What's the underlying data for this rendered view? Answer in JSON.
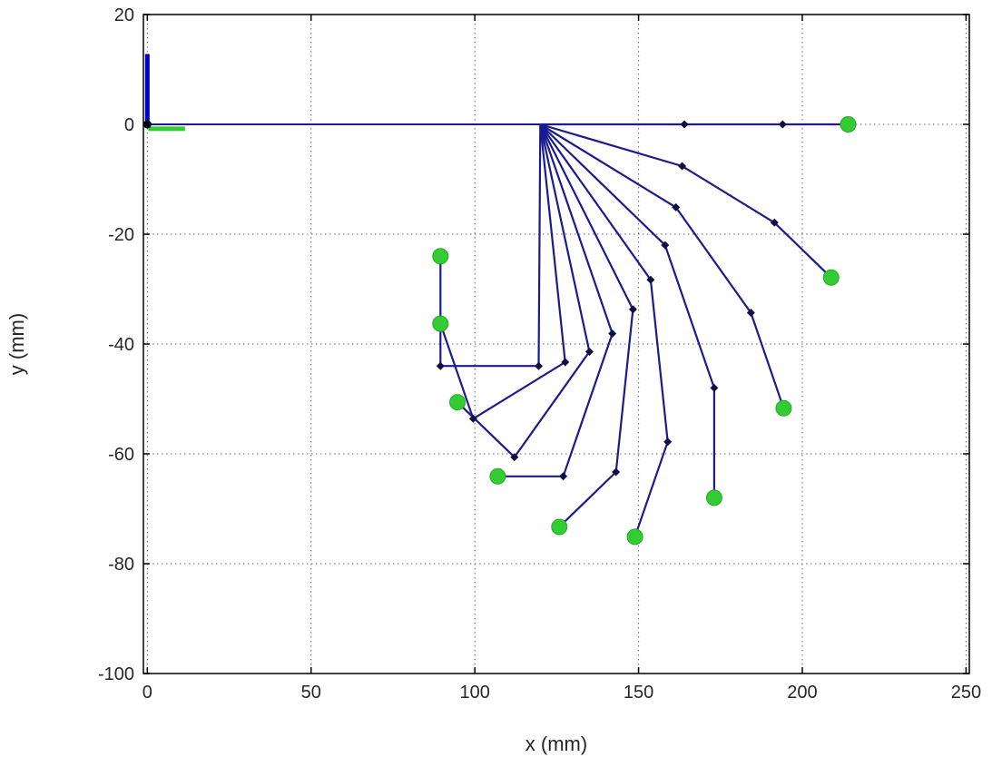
{
  "figure": {
    "background": "#ffffff"
  },
  "chart_data": {
    "type": "line",
    "title": "",
    "xlabel": "x (mm)",
    "ylabel": "y (mm)",
    "xlim": [
      -1.2,
      251
    ],
    "ylim": [
      -100,
      20
    ],
    "x_ticks": [
      0,
      50,
      100,
      150,
      200,
      250
    ],
    "y_ticks": [
      20,
      0,
      -20,
      -40,
      -60,
      -80,
      -100
    ],
    "grid": "dotted",
    "legend": "none",
    "colors": {
      "link": "#1b1b8f",
      "joint_marker": "#101040",
      "tip_marker": "#33cc33",
      "frame_x_axis": "#33cc33",
      "frame_y_axis": "#0000cc",
      "origin_marker": "#000000",
      "grid": "#666666",
      "axis_box": "#000000",
      "text": "#262626"
    },
    "description": "Planar 3-link finger kinematics: ten flexion poses fanning from a knuckle at (120,0); joints marked with dark diamonds, fingertips with green circles; base link from origin to knuckle; coordinate frame bars at origin.",
    "base_link": {
      "points": [
        [
          0,
          0
        ],
        [
          120,
          0
        ]
      ]
    },
    "origin_marker": [
      0,
      0
    ],
    "origin_frame": {
      "y_bar": [
        [
          0,
          -0.3
        ],
        [
          0,
          12.8
        ]
      ],
      "x_bar": [
        [
          0.3,
          -0.8
        ],
        [
          11.5,
          -0.8
        ]
      ]
    },
    "finger_poses": [
      {
        "joints": [
          [
            120,
            0
          ],
          [
            164.0,
            0.0
          ],
          [
            194.0,
            0.0
          ],
          [
            214.0,
            0.0
          ]
        ]
      },
      {
        "joints": [
          [
            120,
            0
          ],
          [
            163.3,
            -7.6
          ],
          [
            191.5,
            -17.9
          ],
          [
            208.8,
            -27.9
          ]
        ]
      },
      {
        "joints": [
          [
            120,
            0
          ],
          [
            161.4,
            -15.1
          ],
          [
            184.3,
            -34.3
          ],
          [
            194.3,
            -51.7
          ]
        ]
      },
      {
        "joints": [
          [
            120,
            0
          ],
          [
            158.1,
            -22.0
          ],
          [
            173.1,
            -48.0
          ],
          [
            173.1,
            -68.0
          ]
        ]
      },
      {
        "joints": [
          [
            120,
            0
          ],
          [
            153.7,
            -28.3
          ],
          [
            158.9,
            -57.8
          ],
          [
            148.9,
            -75.1
          ]
        ]
      },
      {
        "joints": [
          [
            120,
            0
          ],
          [
            148.3,
            -33.7
          ],
          [
            143.1,
            -63.3
          ],
          [
            125.8,
            -73.3
          ]
        ]
      },
      {
        "joints": [
          [
            120,
            0
          ],
          [
            142.0,
            -38.1
          ],
          [
            127.0,
            -64.1
          ],
          [
            107.0,
            -64.1
          ]
        ]
      },
      {
        "joints": [
          [
            120,
            0
          ],
          [
            135.0,
            -41.4
          ],
          [
            112.1,
            -60.6
          ],
          [
            94.7,
            -50.6
          ]
        ]
      },
      {
        "joints": [
          [
            120,
            0
          ],
          [
            127.6,
            -43.3
          ],
          [
            99.5,
            -53.6
          ],
          [
            89.5,
            -36.3
          ]
        ]
      },
      {
        "joints": [
          [
            120,
            0
          ],
          [
            119.5,
            -44.0
          ],
          [
            89.5,
            -44.0
          ],
          [
            89.5,
            -24.0
          ]
        ]
      }
    ]
  }
}
